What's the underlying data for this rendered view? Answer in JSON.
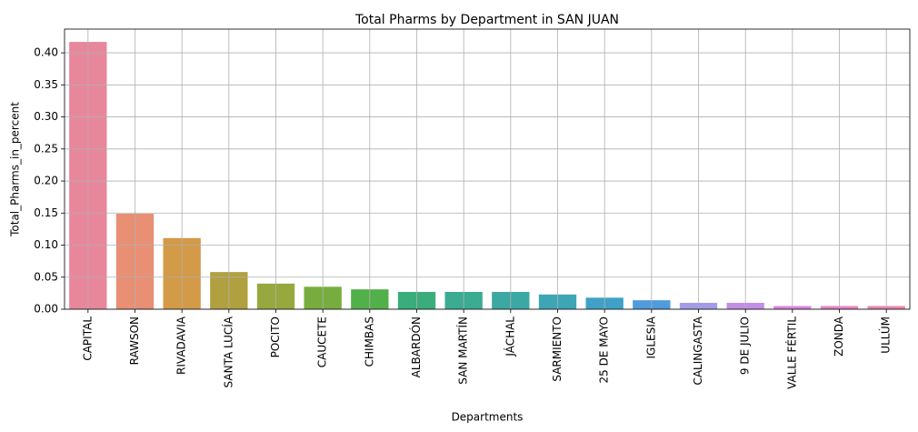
{
  "chart_data": {
    "type": "bar",
    "title": "Total Pharms by Department in SAN JUAN",
    "x_label": "Departments",
    "y_label": "Total_Pharms_in_percent",
    "categories": [
      "CAPITAL",
      "RAWSON",
      "RIVADAVIA",
      "SANTA LUCÍA",
      "POCITO",
      "CAUCETE",
      "CHIMBAS",
      "ALBARDÓN",
      "SAN MARTÍN",
      "JÁCHAL",
      "SARMIENTO",
      "25 DE MAYO",
      "IGLESIA",
      "CALINGASTA",
      "9 DE JULIO",
      "VALLE FÉRTIL",
      "ZONDA",
      "ULLÚM"
    ],
    "values": [
      0.417,
      0.149,
      0.111,
      0.058,
      0.04,
      0.035,
      0.031,
      0.027,
      0.027,
      0.027,
      0.023,
      0.018,
      0.014,
      0.01,
      0.01,
      0.005,
      0.005,
      0.005
    ],
    "colors": [
      "#e8879b",
      "#e88f74",
      "#d39a48",
      "#b0a03f",
      "#97a83e",
      "#77ad3e",
      "#52b04a",
      "#3aad7d",
      "#3bab92",
      "#3ca8a4",
      "#3ea5b4",
      "#40a1c6",
      "#4f9bdb",
      "#a29ce8",
      "#c28fe6",
      "#dc86e0",
      "#e784c7",
      "#e886ae"
    ],
    "ylim": [
      0,
      0.437
    ],
    "yticks": [
      {
        "value": 0,
        "label": "0.00"
      },
      {
        "value": 0.05,
        "label": "0.05"
      },
      {
        "value": 0.1,
        "label": "0.10"
      },
      {
        "value": 0.15,
        "label": "0.15"
      },
      {
        "value": 0.2,
        "label": "0.20"
      },
      {
        "value": 0.25,
        "label": "0.25"
      },
      {
        "value": 0.3,
        "label": "0.30"
      },
      {
        "value": 0.35,
        "label": "0.35"
      },
      {
        "value": 0.4,
        "label": "0.40"
      }
    ],
    "grid": true
  }
}
